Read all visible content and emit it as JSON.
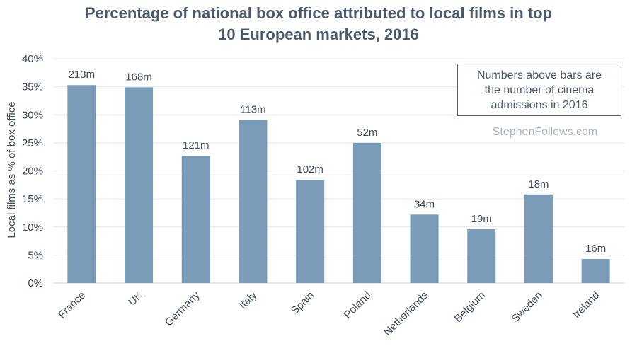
{
  "chart_data": {
    "type": "bar",
    "title_lines": [
      "Percentage of national box office attributed to local films in top",
      "10 European markets, 2016"
    ],
    "ylabel": "Local films as % of box office",
    "xlabel": "",
    "ylim": [
      0,
      40
    ],
    "yticks": [
      0,
      5,
      10,
      15,
      20,
      25,
      30,
      35,
      40
    ],
    "ytick_suffix": "%",
    "grid": true,
    "legend": "none",
    "bar_color": "#7a9cb8",
    "categories": [
      "France",
      "UK",
      "Germany",
      "Italy",
      "Spain",
      "Poland",
      "Netherlands",
      "Belgium",
      "Sweden",
      "Ireland"
    ],
    "values": [
      35.3,
      34.9,
      22.7,
      29.1,
      18.4,
      25.0,
      12.2,
      9.6,
      15.8,
      4.3
    ],
    "data_labels": [
      "213m",
      "168m",
      "121m",
      "113m",
      "102m",
      "52m",
      "34m",
      "19m",
      "18m",
      "16m"
    ],
    "annotation_lines": [
      "Numbers above bars are",
      "the number of cinema",
      "admissions in 2016"
    ],
    "watermark": "StephenFollows.com"
  }
}
